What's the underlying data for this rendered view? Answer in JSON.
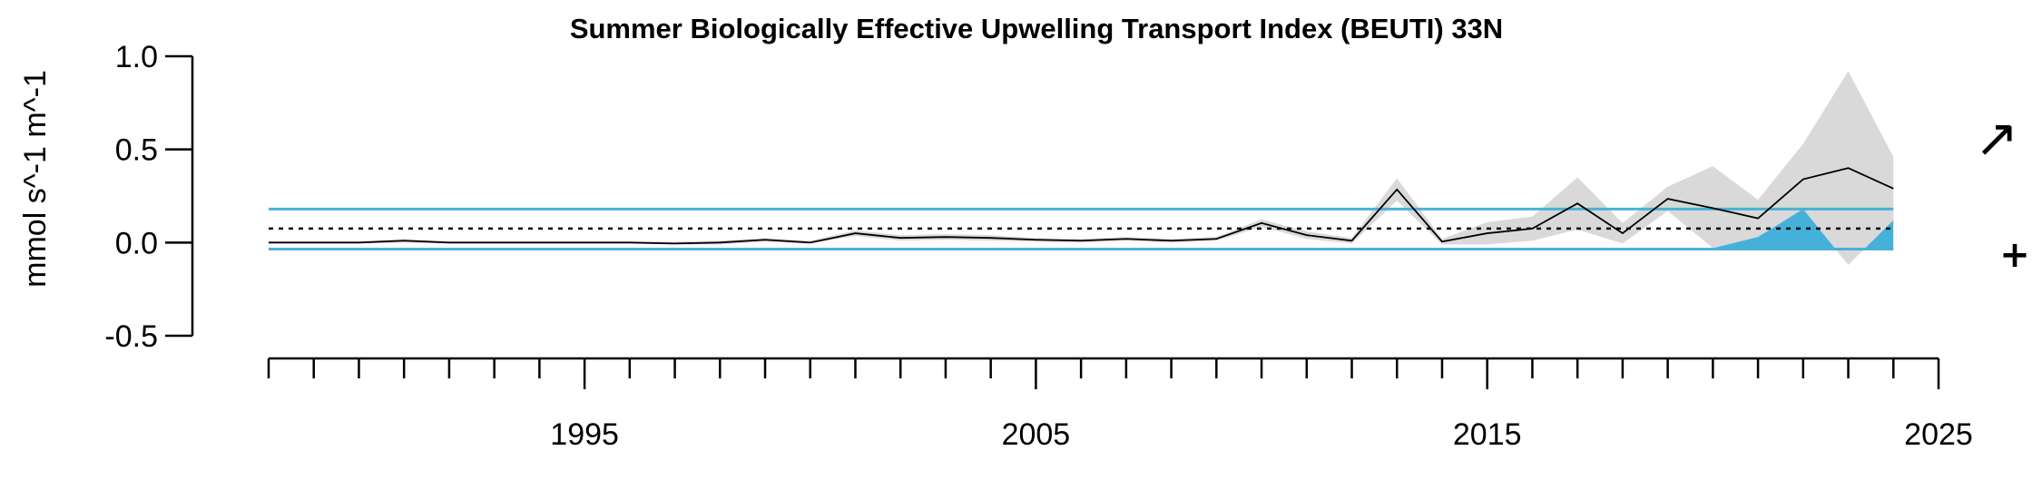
{
  "chart_data": {
    "type": "line",
    "title": "Summer Biologically Effective Upwelling Transport Index (BEUTI) 33N",
    "xlabel": "",
    "ylabel": "mmol s^-1 m^-1",
    "xlim": [
      1988,
      2025
    ],
    "ylim": [
      -0.5,
      1.0
    ],
    "x_ticks": [
      1995,
      2005,
      2015,
      2025
    ],
    "y_ticks": [
      1.0,
      0.5,
      0.0,
      -0.5
    ],
    "x_tick_labels": [
      "1995",
      "2005",
      "2015",
      "2025"
    ],
    "y_tick_labels": [
      "1.0",
      "0.5",
      "0.0",
      "-0.5"
    ],
    "grid": false,
    "series": [
      {
        "x": [
          1988,
          1989,
          1990,
          1991,
          1992,
          1993,
          1994,
          1995,
          1996,
          1997,
          1998,
          1999,
          2000,
          2001,
          2002,
          2003,
          2004,
          2005,
          2006,
          2007,
          2008,
          2009,
          2010,
          2011,
          2012,
          2013,
          2014,
          2015,
          2016,
          2017,
          2018,
          2019,
          2020,
          2021,
          2022,
          2023,
          2024
        ],
        "values": [
          0.0,
          0.0,
          0.0,
          0.01,
          0.0,
          0.0,
          0.0,
          0.0,
          0.0,
          -0.005,
          0.0,
          0.015,
          0.0,
          0.05,
          0.025,
          0.03,
          0.025,
          0.015,
          0.01,
          0.02,
          0.01,
          0.02,
          0.105,
          0.04,
          0.01,
          0.285,
          0.005,
          0.05,
          0.075,
          0.21,
          0.05,
          0.235,
          0.185,
          0.13,
          0.34,
          0.4,
          0.29
        ],
        "lower": [
          -0.005,
          -0.005,
          -0.005,
          0.0,
          -0.005,
          -0.005,
          -0.005,
          -0.005,
          -0.005,
          -0.01,
          -0.01,
          0.005,
          -0.005,
          0.035,
          0.01,
          0.015,
          0.01,
          0.005,
          0.0,
          0.01,
          0.0,
          0.01,
          0.085,
          0.02,
          -0.005,
          0.225,
          -0.01,
          -0.01,
          0.01,
          0.07,
          -0.005,
          0.17,
          -0.03,
          0.03,
          0.18,
          -0.12,
          0.12
        ],
        "upper": [
          0.005,
          0.005,
          0.005,
          0.02,
          0.005,
          0.005,
          0.005,
          0.005,
          0.005,
          0.005,
          0.01,
          0.025,
          0.01,
          0.065,
          0.04,
          0.045,
          0.04,
          0.025,
          0.02,
          0.03,
          0.02,
          0.03,
          0.125,
          0.06,
          0.025,
          0.345,
          0.02,
          0.11,
          0.14,
          0.35,
          0.105,
          0.3,
          0.41,
          0.23,
          0.53,
          0.92,
          0.46
        ]
      }
    ],
    "mean": 0.075,
    "mean_plus_sd": 0.18,
    "mean_minus_sd": -0.035,
    "recent_window": [
      2020,
      2024
    ],
    "trend_symbol": "↗",
    "mean_symbol": "+",
    "colors": {
      "sd_lines": "#4ab1d8",
      "shading_above": "#d9d9d9",
      "shading_below": "#45b0da",
      "line": "#000000",
      "mean_line": "#000000",
      "axes": "#000000"
    }
  }
}
